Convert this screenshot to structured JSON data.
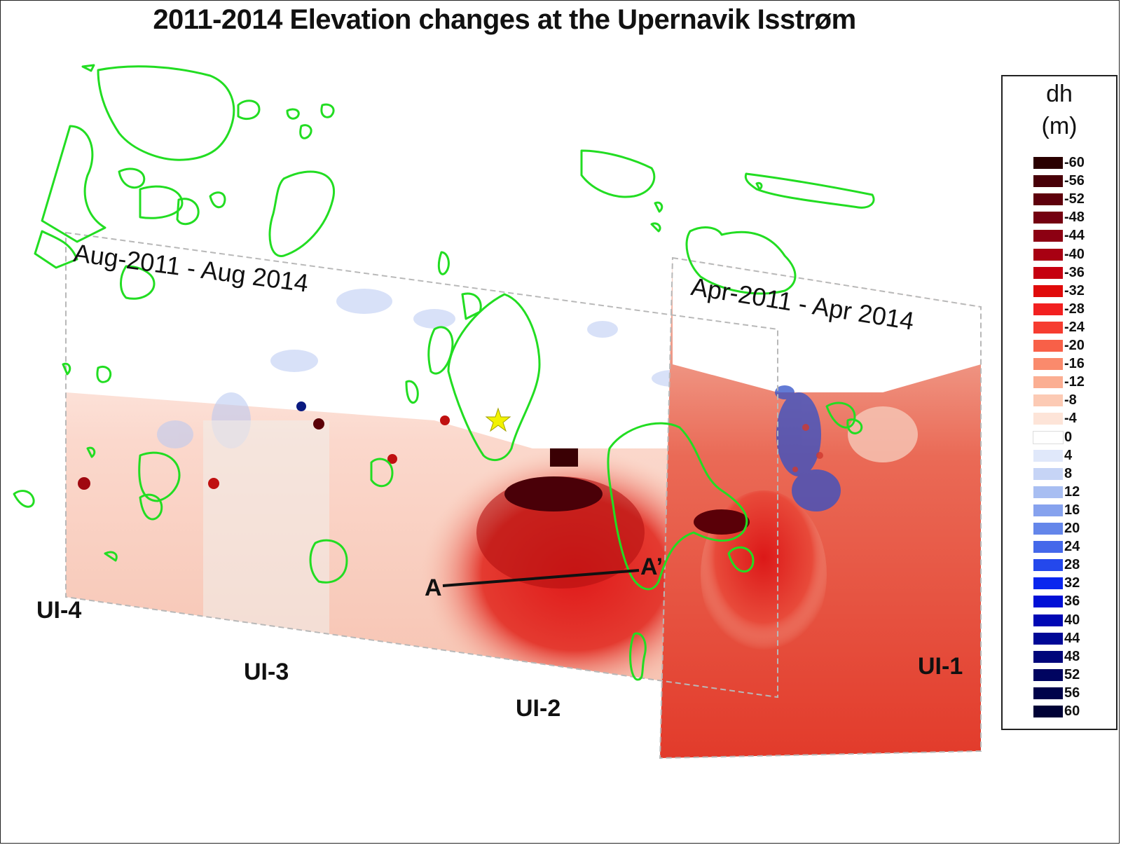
{
  "title": "2011-2014 Elevation changes at the Upernavik Isstrøm",
  "periods": {
    "left": "Aug-2011 - Aug 2014",
    "right": "Apr-2011 - Apr 2014"
  },
  "glacier_labels": {
    "ui1": "UI-1",
    "ui2": "UI-2",
    "ui3": "UI-3",
    "ui4": "UI-4"
  },
  "profile": {
    "start": "A",
    "end": "A’"
  },
  "colors": {
    "outline": "#22dd22",
    "star": "#f2f200",
    "thinning": "#d42020",
    "thickening": "#2244cc",
    "extent_border": "#b8b8b8"
  },
  "legend": {
    "title": "dh",
    "unit": "(m)",
    "entries": [
      {
        "value": "-60",
        "color": "#2a0000"
      },
      {
        "value": "-56",
        "color": "#480008"
      },
      {
        "value": "-52",
        "color": "#5e000c"
      },
      {
        "value": "-48",
        "color": "#740010"
      },
      {
        "value": "-44",
        "color": "#8c0012"
      },
      {
        "value": "-40",
        "color": "#a80012"
      },
      {
        "value": "-36",
        "color": "#c60010"
      },
      {
        "value": "-32",
        "color": "#e00a0a"
      },
      {
        "value": "-28",
        "color": "#f22020"
      },
      {
        "value": "-24",
        "color": "#f63c30"
      },
      {
        "value": "-20",
        "color": "#f86048"
      },
      {
        "value": "-16",
        "color": "#fa8a6c"
      },
      {
        "value": "-12",
        "color": "#fbae92"
      },
      {
        "value": "-8",
        "color": "#fccab4"
      },
      {
        "value": "-4",
        "color": "#fde4d8"
      },
      {
        "value": "0",
        "color": "#ffffff"
      },
      {
        "value": "4",
        "color": "#e0e8fa"
      },
      {
        "value": "8",
        "color": "#c6d4f6"
      },
      {
        "value": "12",
        "color": "#a8bef2"
      },
      {
        "value": "16",
        "color": "#86a2ee"
      },
      {
        "value": "20",
        "color": "#6486ea"
      },
      {
        "value": "24",
        "color": "#4468ea"
      },
      {
        "value": "28",
        "color": "#2448ec"
      },
      {
        "value": "32",
        "color": "#0a26ee"
      },
      {
        "value": "36",
        "color": "#0010d6"
      },
      {
        "value": "40",
        "color": "#0008b4"
      },
      {
        "value": "44",
        "color": "#000896"
      },
      {
        "value": "48",
        "color": "#00067a"
      },
      {
        "value": "52",
        "color": "#000460"
      },
      {
        "value": "56",
        "color": "#00034a"
      },
      {
        "value": "60",
        "color": "#000236"
      }
    ]
  }
}
